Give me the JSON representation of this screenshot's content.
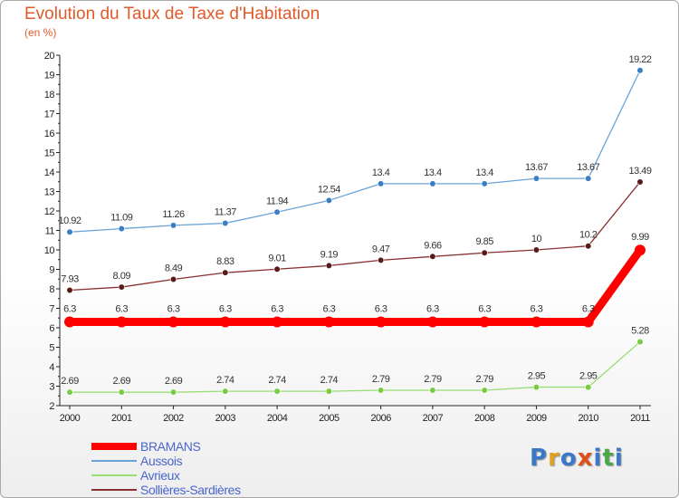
{
  "chart_data": {
    "type": "line",
    "title": "Evolution du Taux de Taxe d'Habitation",
    "subtitle": "(en %)",
    "x": [
      "2000",
      "2001",
      "2002",
      "2003",
      "2004",
      "2005",
      "2006",
      "2007",
      "2008",
      "2009",
      "2010",
      "2011"
    ],
    "ylim": [
      2,
      20
    ],
    "yticks": [
      2,
      3,
      4,
      5,
      6,
      7,
      8,
      9,
      10,
      11,
      12,
      13,
      14,
      15,
      16,
      17,
      18,
      19,
      20
    ],
    "grid": false,
    "legend_position": "bottom-left",
    "series": [
      {
        "name": "BRAMANS",
        "color": "#ff0000",
        "width": 9,
        "marker": 6,
        "values": [
          6.3,
          6.3,
          6.3,
          6.3,
          6.3,
          6.3,
          6.3,
          6.3,
          6.3,
          6.3,
          6.3,
          9.99
        ],
        "labels": [
          "6.3",
          "6.3",
          "6.3",
          "6.3",
          "6.3",
          "6.3",
          "6.3",
          "6.3",
          "6.3",
          "6.3",
          "6.3",
          "9.99"
        ]
      },
      {
        "name": "Aussois",
        "color": "#6aa3d8",
        "width": 1.3,
        "marker": 3.3,
        "marker_color": "#3a7fc4",
        "values": [
          10.92,
          11.09,
          11.26,
          11.37,
          11.94,
          12.54,
          13.4,
          13.4,
          13.4,
          13.67,
          13.67,
          19.22
        ],
        "labels": [
          "10.92",
          "11.09",
          "11.26",
          "11.37",
          "11.94",
          "12.54",
          "13.4",
          "13.4",
          "13.4",
          "13.67",
          "13.67",
          "19.22"
        ]
      },
      {
        "name": "Avrieux",
        "color": "#99dd77",
        "width": 1.3,
        "marker": 3.3,
        "marker_color": "#77cc44",
        "values": [
          2.69,
          2.69,
          2.69,
          2.74,
          2.74,
          2.74,
          2.79,
          2.79,
          2.79,
          2.95,
          2.95,
          5.28
        ],
        "labels": [
          "2.69",
          "2.69",
          "2.69",
          "2.74",
          "2.74",
          "2.74",
          "2.79",
          "2.79",
          "2.79",
          "2.95",
          "2.95",
          "5.28"
        ]
      },
      {
        "name": "Sollières-Sardières",
        "color": "#8a3030",
        "width": 1.3,
        "marker": 3.3,
        "marker_color": "#5a1a1a",
        "values": [
          7.93,
          8.09,
          8.49,
          8.83,
          9.01,
          9.19,
          9.47,
          9.66,
          9.85,
          10,
          10.2,
          13.49
        ],
        "labels": [
          "7.93",
          "8.09",
          "8.49",
          "8.83",
          "9.01",
          "9.19",
          "9.47",
          "9.66",
          "9.85",
          "10",
          "10.2",
          "13.49"
        ]
      }
    ]
  },
  "logo": {
    "text": "Proxiti",
    "letters": [
      "P",
      "r",
      "o",
      "x",
      "i",
      "t",
      "i"
    ],
    "colors": [
      "#3b78c8",
      "#e0a020",
      "#3b78c8",
      "#e0501a",
      "#3b78c8",
      "#4aa84a",
      "#3b78c8"
    ]
  }
}
